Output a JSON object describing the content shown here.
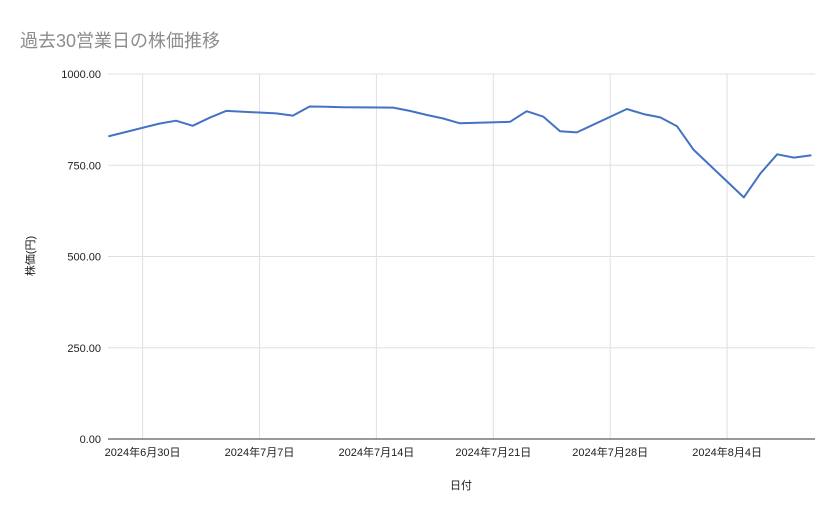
{
  "chart_data": {
    "type": "line",
    "title": "過去30営業日の株価推移",
    "xlabel": "日付",
    "ylabel": "株価(円)",
    "ylim": [
      0,
      1000
    ],
    "grid": true,
    "legend": "none",
    "y_ticks": [
      {
        "value": 1000,
        "label": "1000.00"
      },
      {
        "value": 750,
        "label": "750.00"
      },
      {
        "value": 500,
        "label": "500.00"
      },
      {
        "value": 250,
        "label": "250.00"
      },
      {
        "value": 0,
        "label": "0.00"
      }
    ],
    "x_ticks": [
      {
        "date": "2024-06-30",
        "label": "2024年6月30日"
      },
      {
        "date": "2024-07-07",
        "label": "2024年7月7日"
      },
      {
        "date": "2024-07-14",
        "label": "2024年7月14日"
      },
      {
        "date": "2024-07-21",
        "label": "2024年7月21日"
      },
      {
        "date": "2024-07-28",
        "label": "2024年7月28日"
      },
      {
        "date": "2024-08-04",
        "label": "2024年8月4日"
      }
    ],
    "series": [
      {
        "color": "#4472c4",
        "points": [
          {
            "date": "2024-06-28",
            "value": 830
          },
          {
            "date": "2024-07-01",
            "value": 864
          },
          {
            "date": "2024-07-02",
            "value": 872
          },
          {
            "date": "2024-07-03",
            "value": 858
          },
          {
            "date": "2024-07-04",
            "value": 880
          },
          {
            "date": "2024-07-05",
            "value": 899
          },
          {
            "date": "2024-07-08",
            "value": 892
          },
          {
            "date": "2024-07-09",
            "value": 886
          },
          {
            "date": "2024-07-10",
            "value": 911
          },
          {
            "date": "2024-07-11",
            "value": 910
          },
          {
            "date": "2024-07-12",
            "value": 909
          },
          {
            "date": "2024-07-15",
            "value": 908
          },
          {
            "date": "2024-07-16",
            "value": 899
          },
          {
            "date": "2024-07-17",
            "value": 888
          },
          {
            "date": "2024-07-18",
            "value": 878
          },
          {
            "date": "2024-07-19",
            "value": 865
          },
          {
            "date": "2024-07-22",
            "value": 869
          },
          {
            "date": "2024-07-23",
            "value": 898
          },
          {
            "date": "2024-07-24",
            "value": 883
          },
          {
            "date": "2024-07-25",
            "value": 843
          },
          {
            "date": "2024-07-26",
            "value": 840
          },
          {
            "date": "2024-07-29",
            "value": 904
          },
          {
            "date": "2024-07-30",
            "value": 890
          },
          {
            "date": "2024-07-31",
            "value": 881
          },
          {
            "date": "2024-08-01",
            "value": 857
          },
          {
            "date": "2024-08-02",
            "value": 792
          },
          {
            "date": "2024-08-05",
            "value": 662
          },
          {
            "date": "2024-08-06",
            "value": 728
          },
          {
            "date": "2024-08-07",
            "value": 780
          },
          {
            "date": "2024-08-08",
            "value": 771
          },
          {
            "date": "2024-08-09",
            "value": 777
          }
        ]
      }
    ]
  },
  "colors": {
    "line": "#4472c4",
    "gridline": "#e0e0e0",
    "axis_line": "#333333",
    "tick_label": "#202124",
    "title": "#8c8c8c"
  }
}
